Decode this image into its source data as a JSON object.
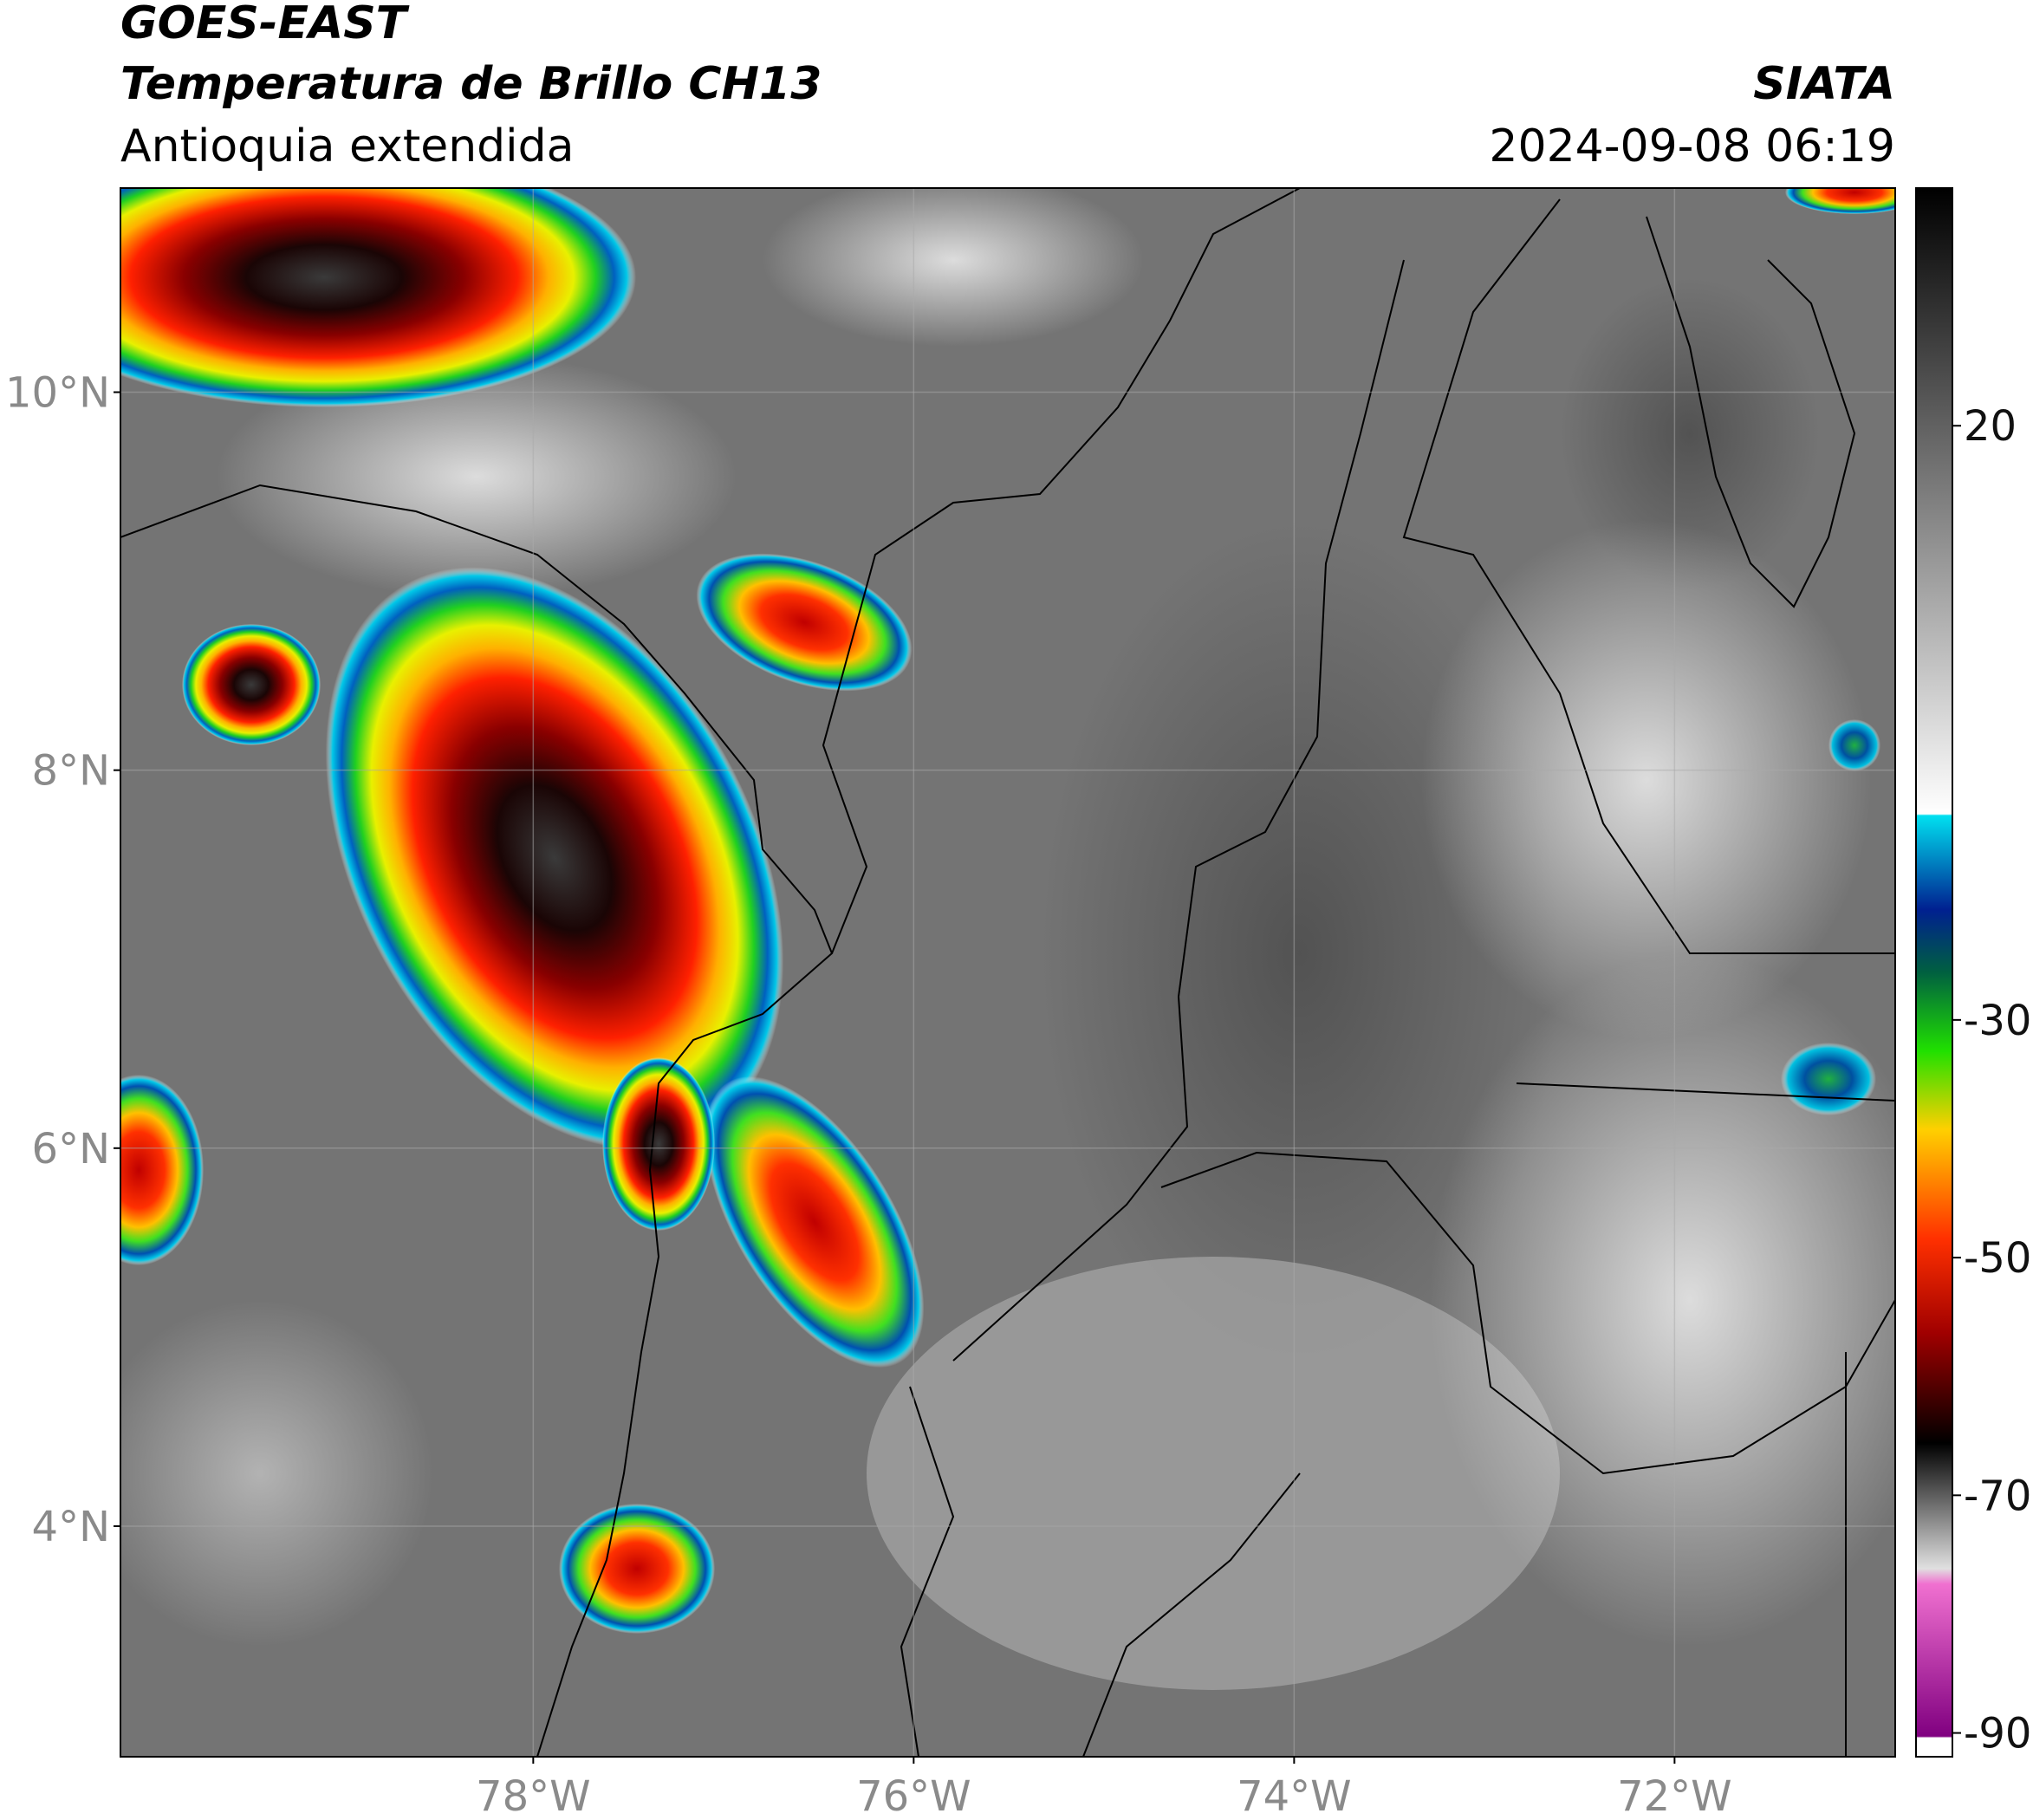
{
  "header": {
    "title": "GOES-EAST",
    "subtitle": "Temperatura de Brillo CH13",
    "region": "Antioquia extendida",
    "source": "SIATA",
    "datetime": "2024-09-08 06:19"
  },
  "map": {
    "latlim": [
      2.78,
      11.08
    ],
    "lonlim": [
      -80.17,
      -70.84
    ],
    "latticks": [
      {
        "value": 4,
        "label": "4°N"
      },
      {
        "value": 6,
        "label": "6°N"
      },
      {
        "value": 8,
        "label": "8°N"
      },
      {
        "value": 10,
        "label": "10°N"
      }
    ],
    "lonticks": [
      {
        "value": -78,
        "label": "78°W"
      },
      {
        "value": -76,
        "label": "76°W"
      },
      {
        "value": -74,
        "label": "74°W"
      },
      {
        "value": -72,
        "label": "72°W"
      }
    ],
    "grid": true
  },
  "colorbar": {
    "lim": [
      -92,
      40
    ],
    "ticks": [
      -90,
      -70,
      -50,
      -30,
      20
    ]
  }
}
